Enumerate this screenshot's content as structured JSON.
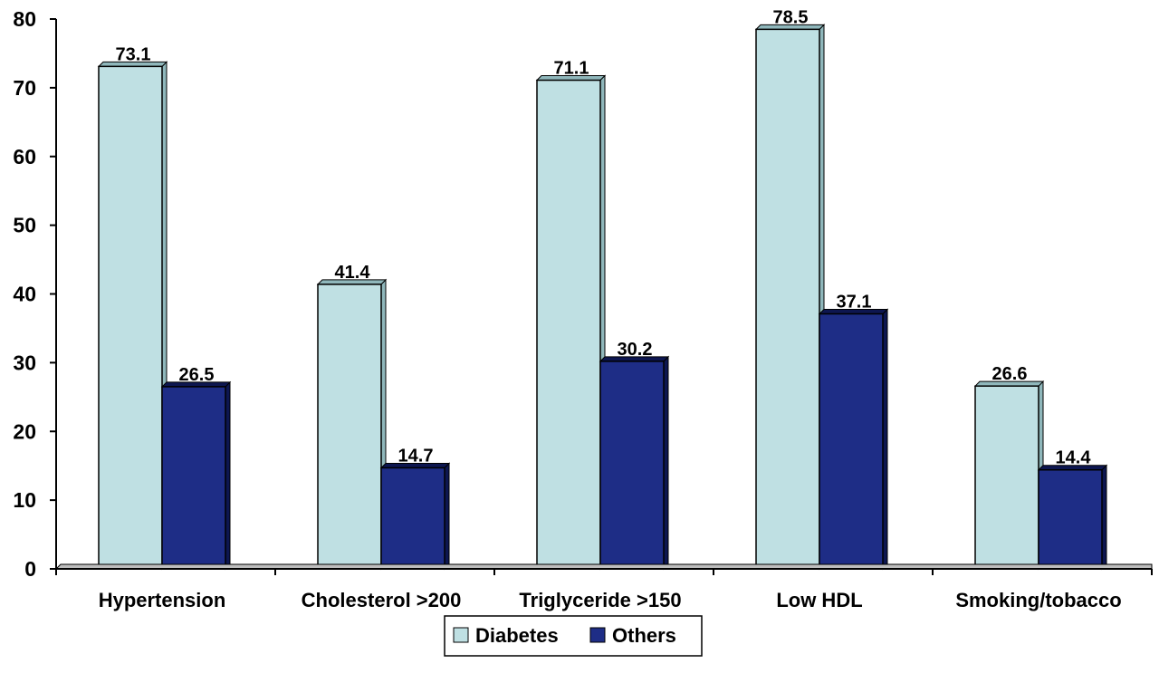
{
  "chart_data": {
    "type": "bar",
    "categories": [
      "Hypertension",
      "Cholesterol >200",
      "Triglyceride >150",
      "Low HDL",
      "Smoking/tobacco"
    ],
    "series": [
      {
        "name": "Diabetes",
        "values": [
          73.1,
          41.4,
          71.1,
          78.5,
          26.6
        ],
        "color": "#bfe0e3"
      },
      {
        "name": "Others",
        "values": [
          26.5,
          14.7,
          30.2,
          37.1,
          14.4
        ],
        "color": "#1e2d86"
      }
    ],
    "data_labels": [
      [
        "73.1",
        "41.4",
        "71.1",
        "78.5",
        "26.6"
      ],
      [
        "26.5",
        "14.7",
        "30.2",
        "37.1",
        "14.4"
      ]
    ],
    "y_ticks": [
      "0",
      "10",
      "20",
      "30",
      "40",
      "50",
      "60",
      "70",
      "80"
    ],
    "ylim": [
      0,
      80
    ],
    "grid": false,
    "legend_position": "bottom-center",
    "title": "",
    "xlabel": "",
    "ylabel": ""
  }
}
